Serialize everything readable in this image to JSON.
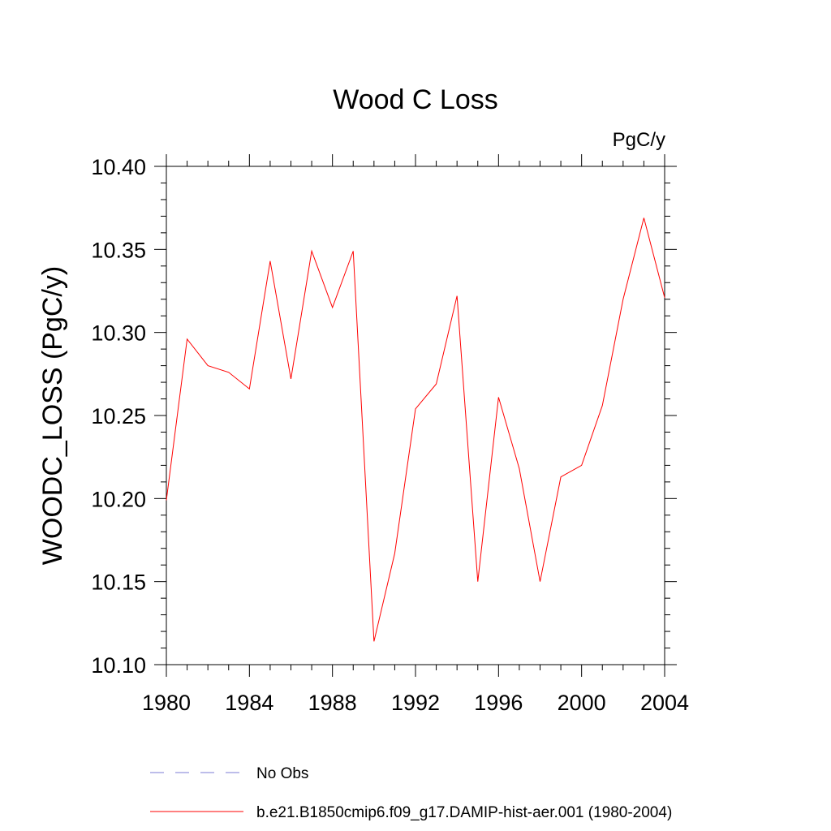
{
  "chart_data": {
    "type": "line",
    "title": "Wood C Loss",
    "units_label": "PgC/y",
    "ylabel": "WOODC_LOSS  (PgC/y)",
    "xlabel": "",
    "xlim": [
      1980,
      2004
    ],
    "ylim": [
      10.1,
      10.4
    ],
    "x_ticks": [
      1980,
      1984,
      1988,
      1992,
      1996,
      2000,
      2004
    ],
    "y_ticks": [
      10.1,
      10.15,
      10.2,
      10.25,
      10.3,
      10.35,
      10.4
    ],
    "x_tick_labels": [
      "1980",
      "1984",
      "1988",
      "1992",
      "1996",
      "2000",
      "2004"
    ],
    "y_tick_labels": [
      "10.10",
      "10.15",
      "10.20",
      "10.25",
      "10.30",
      "10.35",
      "10.40"
    ],
    "grid": false,
    "legend_position": "bottom",
    "series": [
      {
        "name": "b.e21.B1850cmip6.f09_g17.DAMIP-hist-aer.001 (1980-2004)",
        "color": "#ff0000",
        "style": "solid",
        "x": [
          1980,
          1981,
          1982,
          1983,
          1984,
          1985,
          1986,
          1987,
          1988,
          1989,
          1990,
          1991,
          1992,
          1993,
          1994,
          1995,
          1996,
          1997,
          1998,
          1999,
          2000,
          2001,
          2002,
          2003,
          2004
        ],
        "y": [
          10.199,
          10.296,
          10.28,
          10.276,
          10.266,
          10.343,
          10.272,
          10.349,
          10.315,
          10.349,
          10.114,
          10.167,
          10.254,
          10.269,
          10.322,
          10.15,
          10.261,
          10.218,
          10.15,
          10.213,
          10.22,
          10.256,
          10.32,
          10.369,
          10.321
        ]
      }
    ],
    "legend": [
      {
        "label": "No Obs",
        "color": "#7b7bd6",
        "style": "dashed"
      },
      {
        "label": "b.e21.B1850cmip6.f09_g17.DAMIP-hist-aer.001 (1980-2004)",
        "color": "#ff0000",
        "style": "solid"
      }
    ]
  }
}
